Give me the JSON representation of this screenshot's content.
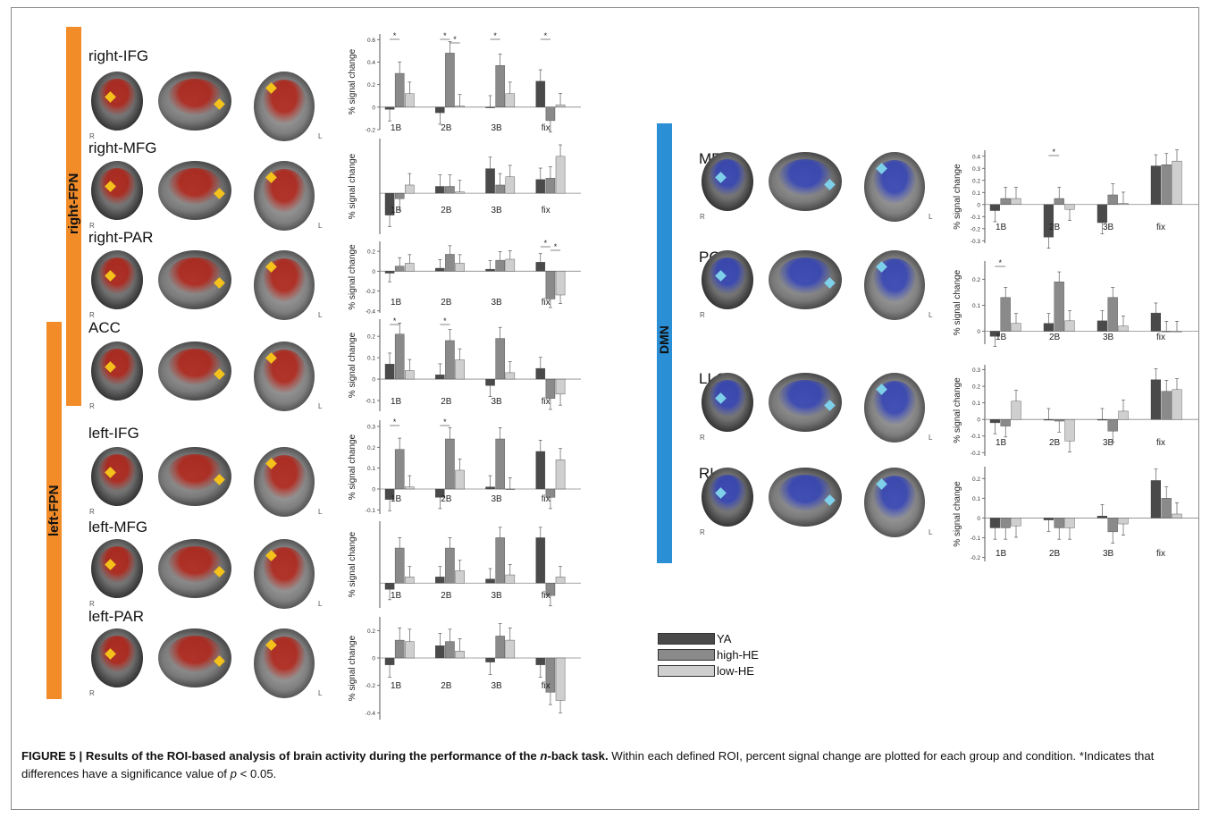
{
  "figure": {
    "caption_bold": "FIGURE 5 | Results of the ROI-based analysis of brain activity during the performance of the ",
    "caption_bold_italic": "n",
    "caption_bold_end": "-back task.",
    "caption_text": " Within each defined ROI, percent signal change are plotted for each group and condition. *Indicates that differences have a significance value of ",
    "caption_p": "p",
    "caption_end": " < 0.05."
  },
  "networks": {
    "right_fpn": "right-FPN",
    "left_fpn": "left-FPN",
    "dmn": "DMN"
  },
  "colors": {
    "right_fpn": "#f28c28",
    "left_fpn": "#f28c28",
    "dmn": "#2b8fd6",
    "YA": "#4a4a4a",
    "high-HE": "#8a8a8a",
    "low-HE": "#cfcfcf",
    "activation_fpn": "#b01e12",
    "activation_dmn": "#2f3fb5",
    "marker_fpn": "#f5c21b",
    "marker_dmn": "#7fd0ea"
  },
  "legend": [
    {
      "name": "YA",
      "color": "#4a4a4a"
    },
    {
      "name": "high-HE",
      "color": "#8a8a8a"
    },
    {
      "name": "low-HE",
      "color": "#cfcfcf"
    }
  ],
  "orientation": {
    "r": "R",
    "l": "L"
  },
  "chart_data": [
    {
      "type": "bar",
      "roi": "right-IFG",
      "network": "right-FPN",
      "ylabel": "% signal change",
      "categories": [
        "1B",
        "2B",
        "3B",
        "fix"
      ],
      "series": [
        {
          "name": "YA",
          "values": [
            -0.02,
            -0.05,
            0.0,
            0.23
          ]
        },
        {
          "name": "high-HE",
          "values": [
            0.3,
            0.48,
            0.37,
            -0.12
          ]
        },
        {
          "name": "low-HE",
          "values": [
            0.12,
            0.01,
            0.12,
            0.02
          ]
        }
      ],
      "yticks": [
        "0.6",
        "0.4",
        "0.2",
        "0",
        "-0.2"
      ],
      "ylim": [
        -0.2,
        0.65
      ],
      "significance": [
        "1B",
        "2B",
        "2B",
        "3B",
        "fix"
      ]
    },
    {
      "type": "bar",
      "roi": "right-MFG",
      "network": "right-FPN",
      "ylabel": "% signal change",
      "categories": [
        "1B",
        "2B",
        "3B",
        "fix"
      ],
      "series": [
        {
          "name": "YA",
          "values": [
            -0.16,
            0.05,
            0.18,
            0.1
          ]
        },
        {
          "name": "high-HE",
          "values": [
            -0.04,
            0.05,
            0.06,
            0.11
          ]
        },
        {
          "name": "low-HE",
          "values": [
            0.06,
            0.01,
            0.12,
            0.27
          ]
        }
      ],
      "yticks": [],
      "ylim": [
        -0.3,
        0.4
      ],
      "significance": []
    },
    {
      "type": "bar",
      "roi": "right-PAR",
      "network": "right-FPN",
      "ylabel": "% signal change",
      "categories": [
        "1B",
        "2B",
        "3B",
        "fix"
      ],
      "series": [
        {
          "name": "YA",
          "values": [
            -0.02,
            0.03,
            0.02,
            0.09
          ]
        },
        {
          "name": "high-HE",
          "values": [
            0.05,
            0.17,
            0.11,
            -0.28
          ]
        },
        {
          "name": "low-HE",
          "values": [
            0.08,
            0.08,
            0.12,
            -0.24
          ]
        }
      ],
      "yticks": [
        "0.2",
        "0",
        "-0.2",
        "-0.4"
      ],
      "ylim": [
        -0.42,
        0.3
      ],
      "significance": [
        "fix",
        "fix"
      ]
    },
    {
      "type": "bar",
      "roi": "ACC",
      "network": "right-FPN",
      "ylabel": "% signal change",
      "categories": [
        "1B",
        "2B",
        "3B",
        "fix"
      ],
      "series": [
        {
          "name": "YA",
          "values": [
            0.07,
            0.02,
            -0.03,
            0.05
          ]
        },
        {
          "name": "high-HE",
          "values": [
            0.21,
            0.18,
            0.19,
            -0.09
          ]
        },
        {
          "name": "low-HE",
          "values": [
            0.04,
            0.09,
            0.03,
            -0.07
          ]
        }
      ],
      "yticks": [
        "0.2",
        "0.1",
        "0",
        "-0.1"
      ],
      "ylim": [
        -0.15,
        0.28
      ],
      "significance": [
        "1B",
        "2B"
      ]
    },
    {
      "type": "bar",
      "roi": "left-IFG",
      "network": "left-FPN",
      "ylabel": "% signal change",
      "categories": [
        "1B",
        "2B",
        "3B",
        "fix"
      ],
      "series": [
        {
          "name": "YA",
          "values": [
            -0.05,
            -0.04,
            0.01,
            0.18
          ]
        },
        {
          "name": "high-HE",
          "values": [
            0.19,
            0.24,
            0.24,
            -0.04
          ]
        },
        {
          "name": "low-HE",
          "values": [
            0.01,
            0.09,
            0.0,
            0.14
          ]
        }
      ],
      "yticks": [
        "0.3",
        "0.2",
        "0.1",
        "0",
        "-0.1"
      ],
      "ylim": [
        -0.12,
        0.33
      ],
      "significance": [
        "1B",
        "2B"
      ]
    },
    {
      "type": "bar",
      "roi": "left-MFG",
      "network": "left-FPN",
      "ylabel": "% signal change",
      "categories": [
        "1B",
        "2B",
        "3B",
        "fix"
      ],
      "series": [
        {
          "name": "YA",
          "values": [
            -0.03,
            0.03,
            0.02,
            0.22
          ]
        },
        {
          "name": "high-HE",
          "values": [
            0.17,
            0.17,
            0.22,
            -0.06
          ]
        },
        {
          "name": "low-HE",
          "values": [
            0.03,
            0.06,
            0.04,
            0.03
          ]
        }
      ],
      "yticks": [],
      "ylim": [
        -0.12,
        0.3
      ],
      "significance": []
    },
    {
      "type": "bar",
      "roi": "left-PAR",
      "network": "left-FPN",
      "ylabel": "% signal change",
      "categories": [
        "1B",
        "2B",
        "3B",
        "fix"
      ],
      "series": [
        {
          "name": "YA",
          "values": [
            -0.05,
            0.09,
            -0.03,
            -0.05
          ]
        },
        {
          "name": "high-HE",
          "values": [
            0.13,
            0.12,
            0.16,
            -0.25
          ]
        },
        {
          "name": "low-HE",
          "values": [
            0.12,
            0.05,
            0.13,
            -0.31
          ]
        }
      ],
      "yticks": [
        "0.2",
        "0",
        "-0.2",
        "-0.4"
      ],
      "ylim": [
        -0.45,
        0.3
      ],
      "significance": []
    },
    {
      "type": "bar",
      "roi": "MFC",
      "network": "DMN",
      "ylabel": "% signal change",
      "categories": [
        "1B",
        "2B",
        "3B",
        "fix"
      ],
      "series": [
        {
          "name": "YA",
          "values": [
            -0.05,
            -0.27,
            -0.15,
            0.32
          ]
        },
        {
          "name": "high-HE",
          "values": [
            0.05,
            0.05,
            0.08,
            0.33
          ]
        },
        {
          "name": "low-HE",
          "values": [
            0.05,
            -0.04,
            0.01,
            0.36
          ]
        }
      ],
      "yticks": [
        "0.4",
        "0.3",
        "0.2",
        "0.1",
        "0",
        "-0.1",
        "-0.2",
        "-0.3"
      ],
      "ylim": [
        -0.32,
        0.45
      ],
      "significance": [
        "2B"
      ]
    },
    {
      "type": "bar",
      "roi": "PCC",
      "network": "DMN",
      "ylabel": "% signal change",
      "categories": [
        "1B",
        "2B",
        "3B",
        "fix"
      ],
      "series": [
        {
          "name": "YA",
          "values": [
            -0.02,
            0.03,
            0.04,
            0.07
          ]
        },
        {
          "name": "high-HE",
          "values": [
            0.13,
            0.19,
            0.13,
            0.0
          ]
        },
        {
          "name": "low-HE",
          "values": [
            0.03,
            0.04,
            0.02,
            0.0
          ]
        }
      ],
      "yticks": [
        "0.2",
        "0.1",
        "0"
      ],
      "ylim": [
        -0.05,
        0.27
      ],
      "significance": [
        "1B"
      ]
    },
    {
      "type": "bar",
      "roi": "LLO",
      "network": "DMN",
      "ylabel": "% signal change",
      "categories": [
        "1B",
        "2B",
        "3B",
        "fix"
      ],
      "series": [
        {
          "name": "YA",
          "values": [
            -0.02,
            0.0,
            0.0,
            0.24
          ]
        },
        {
          "name": "high-HE",
          "values": [
            -0.04,
            -0.01,
            -0.07,
            0.17
          ]
        },
        {
          "name": "low-HE",
          "values": [
            0.11,
            -0.13,
            0.05,
            0.18
          ]
        }
      ],
      "yticks": [
        "0.3",
        "0.2",
        "0.1",
        "0",
        "-0.1",
        "-0.2"
      ],
      "ylim": [
        -0.22,
        0.33
      ],
      "significance": []
    },
    {
      "type": "bar",
      "roi": "RLO",
      "network": "DMN",
      "ylabel": "% signal change",
      "categories": [
        "1B",
        "2B",
        "3B",
        "fix"
      ],
      "series": [
        {
          "name": "YA",
          "values": [
            -0.05,
            -0.01,
            0.01,
            0.19
          ]
        },
        {
          "name": "high-HE",
          "values": [
            -0.05,
            -0.05,
            -0.07,
            0.1
          ]
        },
        {
          "name": "low-HE",
          "values": [
            -0.04,
            -0.05,
            -0.03,
            0.02
          ]
        }
      ],
      "yticks": [
        "0.2",
        "0.1",
        "0",
        "-0.1",
        "-0.2"
      ],
      "ylim": [
        -0.22,
        0.26
      ],
      "significance": []
    }
  ]
}
